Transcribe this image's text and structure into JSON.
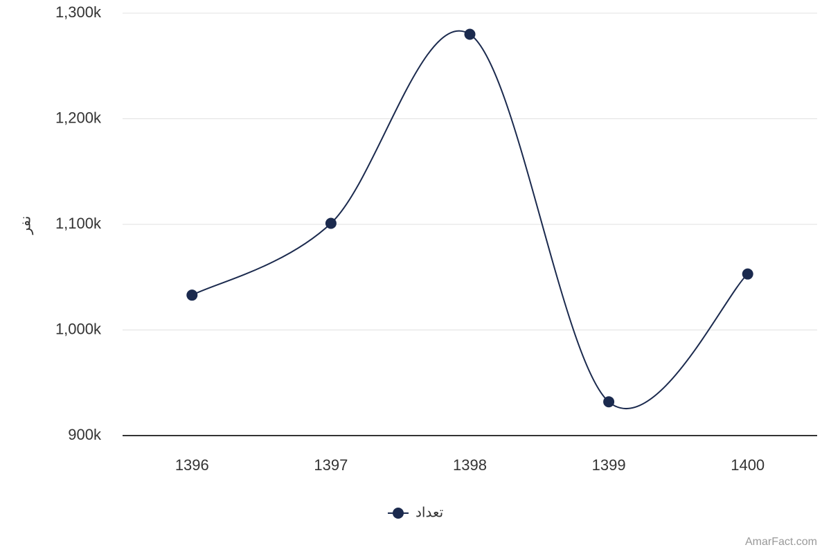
{
  "chart_data": {
    "type": "line",
    "categories": [
      "1396",
      "1397",
      "1398",
      "1399",
      "1400"
    ],
    "series": [
      {
        "name": "تعداد",
        "color": "#1b2a4e",
        "values": [
          1033000,
          1101000,
          1280000,
          932000,
          1053000
        ]
      }
    ],
    "ylim": [
      900000,
      1300000
    ],
    "yticks": [
      {
        "value": 900000,
        "label": "900k"
      },
      {
        "value": 1000000,
        "label": "1,000k"
      },
      {
        "value": 1100000,
        "label": "1,100k"
      },
      {
        "value": 1200000,
        "label": "1,200k"
      },
      {
        "value": 1300000,
        "label": "1,300k"
      }
    ],
    "y_label": "نفر",
    "grid": true,
    "smooth": true,
    "legend": "bottom",
    "credit": "AmarFact.com"
  }
}
